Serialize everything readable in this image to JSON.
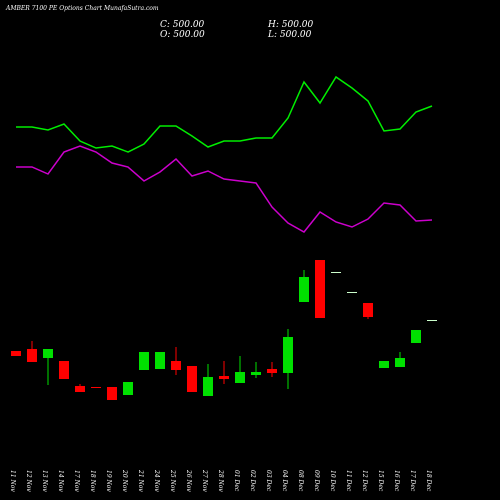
{
  "chart_data": {
    "type": "candlestick",
    "title": "AMBER 7100 PE Options Chart MunafaSutra.com",
    "ohlc_labels": [
      "C: 500.00",
      "H: 500.00",
      "O: 500.00",
      "L: 500.00"
    ],
    "categories": [
      "11 Nov",
      "12 Nov",
      "13 Nov",
      "14 Nov",
      "17 Nov",
      "18 Nov",
      "19 Nov",
      "20 Nov",
      "21 Nov",
      "24 Nov",
      "25 Nov",
      "26 Nov",
      "27 Nov",
      "28 Nov",
      "01 Dec",
      "02 Dec",
      "03 Dec",
      "04 Dec",
      "08 Dec",
      "09 Dec",
      "10 Dec",
      "11 Dec",
      "12 Dec",
      "15 Dec",
      "16 Dec",
      "17 Dec",
      "18 Dec"
    ],
    "open": [
      149,
      151,
      142,
      139,
      114,
      113,
      113,
      105,
      130,
      131,
      139,
      134,
      104,
      124,
      117,
      125,
      131,
      127,
      198,
      240,
      228,
      208,
      197,
      132,
      133,
      157,
      180
    ],
    "high": [
      149,
      159,
      151,
      139,
      116,
      113,
      113,
      118,
      148,
      148,
      153,
      134,
      136,
      139,
      144,
      138,
      138,
      171,
      230,
      240,
      228,
      208,
      197,
      139,
      148,
      170,
      180
    ],
    "low": [
      144,
      138,
      115,
      121,
      108,
      112,
      100,
      105,
      130,
      131,
      125,
      108,
      104,
      116,
      117,
      122,
      123,
      111,
      198,
      182,
      228,
      208,
      181,
      132,
      133,
      157,
      180
    ],
    "close": [
      144,
      138,
      151,
      121,
      108,
      112,
      100,
      118,
      148,
      148,
      130,
      108,
      123,
      121,
      128,
      128,
      127,
      163,
      223,
      182,
      228,
      208,
      183,
      139,
      142,
      170,
      180
    ],
    "up_color": "#00e000",
    "down_color": "#ff0000",
    "series": [
      {
        "color": "#00ee00",
        "values": [
          373,
          373,
          370,
          376,
          359,
          352,
          354,
          348,
          356,
          374,
          374,
          364,
          353,
          359,
          359,
          362,
          362,
          382,
          418,
          397,
          423,
          412,
          399,
          369,
          371,
          388,
          394
        ]
      },
      {
        "color": "#cc00cc",
        "values": [
          333,
          333,
          326,
          348,
          354,
          348,
          337,
          333,
          319,
          328,
          341,
          324,
          329,
          321,
          319,
          317,
          293,
          277,
          268,
          288,
          278,
          273,
          281,
          297,
          295,
          279,
          280
        ]
      }
    ],
    "ylim": [
      0,
      500
    ]
  }
}
